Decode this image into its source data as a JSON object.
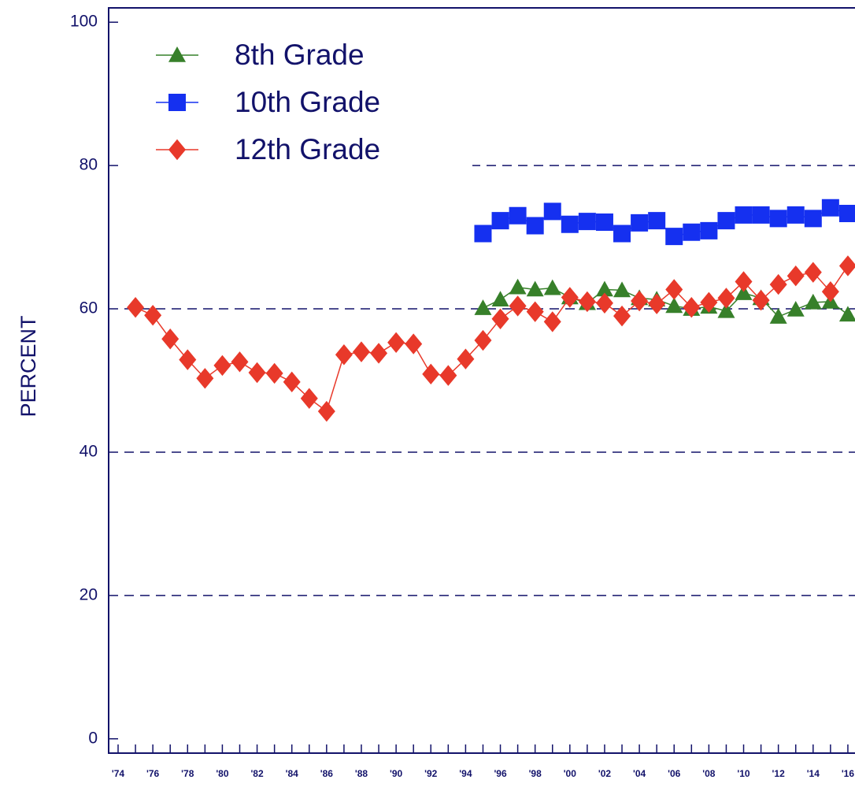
{
  "chart_data": {
    "type": "line",
    "y_label": "PERCENT",
    "categories": [
      "'74",
      null,
      "'76",
      null,
      "'78",
      null,
      "'80",
      null,
      "'82",
      null,
      "'84",
      null,
      "'86",
      null,
      "'88",
      null,
      "'90",
      null,
      "'92",
      null,
      "'94",
      null,
      "'96",
      null,
      "'98",
      null,
      "'00",
      null,
      "'02",
      null,
      "'04",
      null,
      "'06",
      null,
      "'08",
      null,
      "'10",
      null,
      "'12",
      null,
      "'14",
      null,
      "'16"
    ],
    "ylim": [
      -2,
      102
    ],
    "yticks": [
      0,
      20,
      40,
      60,
      80,
      100
    ],
    "grid": true,
    "legend": "upper left",
    "series": [
      {
        "name": "8th Grade",
        "color": "#37802a",
        "marker": "triangle",
        "values": [
          null,
          null,
          null,
          null,
          null,
          null,
          null,
          null,
          null,
          null,
          null,
          null,
          null,
          null,
          null,
          null,
          null,
          null,
          null,
          null,
          null,
          60.1,
          61.3,
          63,
          62.7,
          62.9,
          61.6,
          60.8,
          62.7,
          62.6,
          61.5,
          61.3,
          60.4,
          60,
          60.3,
          59.7,
          62.2,
          61.5,
          58.9,
          59.9,
          60.9,
          61,
          59.2
        ]
      },
      {
        "name": "10th Grade",
        "color": "#1530f0",
        "marker": "square",
        "values": [
          null,
          null,
          null,
          null,
          null,
          null,
          null,
          null,
          null,
          null,
          null,
          null,
          null,
          null,
          null,
          null,
          null,
          null,
          null,
          null,
          null,
          70.5,
          72.3,
          73,
          71.6,
          73.6,
          71.8,
          72.2,
          72.1,
          70.5,
          72,
          72.3,
          70.1,
          70.7,
          70.9,
          72.3,
          73.1,
          73.1,
          72.6,
          73.1,
          72.6,
          74.1,
          73.3
        ]
      },
      {
        "name": "12th Grade",
        "color": "#e8392a",
        "marker": "diamond",
        "values": [
          null,
          60.2,
          59.1,
          55.8,
          52.9,
          50.3,
          52.1,
          52.6,
          51.1,
          51,
          49.8,
          47.5,
          45.7,
          53.6,
          54,
          53.8,
          55.3,
          55.1,
          50.9,
          50.7,
          53,
          55.6,
          58.6,
          60.4,
          59.6,
          58.2,
          61.6,
          61,
          60.8,
          59,
          61.1,
          60.7,
          62.7,
          60.2,
          60.9,
          61.5,
          63.8,
          61.2,
          63.4,
          64.6,
          65.1,
          62.4,
          66
        ]
      }
    ]
  }
}
